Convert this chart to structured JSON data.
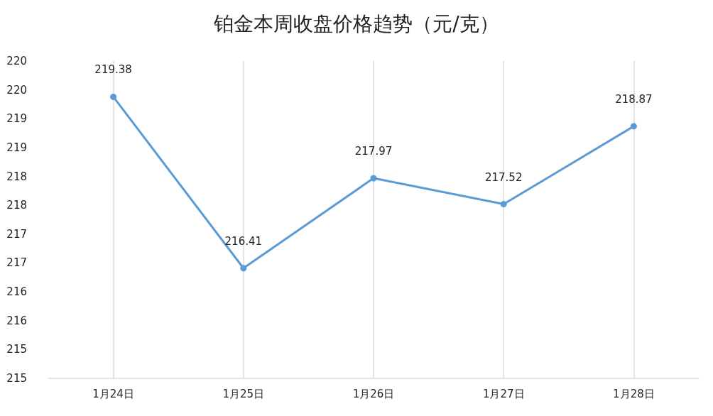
{
  "chart_data": {
    "type": "line",
    "title": "铂金本周收盘价格趋势（元/克）",
    "categories": [
      "1月24日",
      "1月25日",
      "1月26日",
      "1月27日",
      "1月28日"
    ],
    "series": [
      {
        "color": "#5b9bd5",
        "values": [
          219.38,
          216.41,
          217.97,
          217.52,
          218.87
        ]
      }
    ],
    "ylim": [
      214.5,
      220
    ],
    "yticks": [
      {
        "value": 214.5,
        "label": "215"
      },
      {
        "value": 215,
        "label": "215"
      },
      {
        "value": 215.5,
        "label": "216"
      },
      {
        "value": 216,
        "label": "216"
      },
      {
        "value": 216.5,
        "label": "217"
      },
      {
        "value": 217,
        "label": "217"
      },
      {
        "value": 217.5,
        "label": "218"
      },
      {
        "value": 218,
        "label": "218"
      },
      {
        "value": 218.5,
        "label": "219"
      },
      {
        "value": 219,
        "label": "219"
      },
      {
        "value": 219.5,
        "label": "220"
      },
      {
        "value": 220,
        "label": "220"
      }
    ],
    "data_labels": true,
    "grid": "x",
    "marker": "circle",
    "line_style": "solid"
  }
}
